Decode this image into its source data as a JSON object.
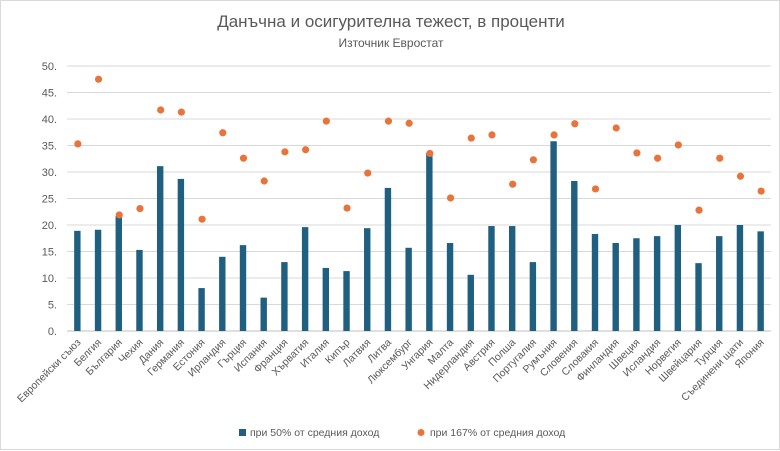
{
  "chart_data": {
    "type": "bar",
    "title": "Данъчна и осигурителна тежест, в проценти",
    "subtitle": "Източник Евростат",
    "xlabel": "",
    "ylabel": "",
    "ylim": [
      0,
      50
    ],
    "yticks": [
      "0.",
      "5.",
      "10.",
      "15.",
      "20.",
      "25.",
      "30.",
      "35.",
      "40.",
      "45.",
      "50."
    ],
    "grid": true,
    "legend_position": "bottom",
    "categories": [
      "Европейски съюз",
      "Белгия",
      "България",
      "Чехия",
      "Дания",
      "Германия",
      "Естония",
      "Ирландия",
      "Гърция",
      "Испания",
      "Франция",
      "Хърватия",
      "Италия",
      "Кипър",
      "Латвия",
      "Литва",
      "Люксембург",
      "Унгария",
      "Малта",
      "Нидерландия",
      "Австрия",
      "Полша",
      "Португалия",
      "Румъния",
      "Словения",
      "Словакия",
      "Финландия",
      "Швеция",
      "Исландия",
      "Норвегия",
      "Швейцария",
      "Турция",
      "Съединени щати",
      "Япония"
    ],
    "series": [
      {
        "name": "при 50% от средния доход",
        "type": "bar",
        "color": "#1f5f7f",
        "values": [
          18.9,
          19.1,
          21.7,
          15.3,
          31.1,
          28.7,
          8.1,
          14.0,
          16.2,
          6.3,
          13.0,
          19.6,
          11.9,
          11.3,
          19.4,
          27.0,
          15.7,
          33.6,
          16.6,
          10.6,
          19.8,
          19.8,
          13.0,
          35.8,
          28.3,
          18.3,
          16.6,
          17.5,
          17.9,
          20.0,
          12.8,
          17.9,
          20.0,
          18.8
        ]
      },
      {
        "name": "при 167% от средния доход",
        "type": "scatter",
        "color": "#e8743b",
        "values": [
          35.3,
          47.5,
          21.9,
          23.1,
          41.7,
          41.3,
          21.1,
          37.4,
          32.6,
          28.3,
          33.8,
          34.2,
          39.6,
          23.2,
          29.8,
          39.6,
          39.2,
          33.5,
          25.1,
          36.4,
          37.0,
          27.7,
          32.3,
          37.0,
          39.1,
          26.8,
          38.3,
          33.6,
          32.6,
          35.1,
          22.8,
          32.6,
          29.2,
          26.4
        ]
      }
    ]
  }
}
